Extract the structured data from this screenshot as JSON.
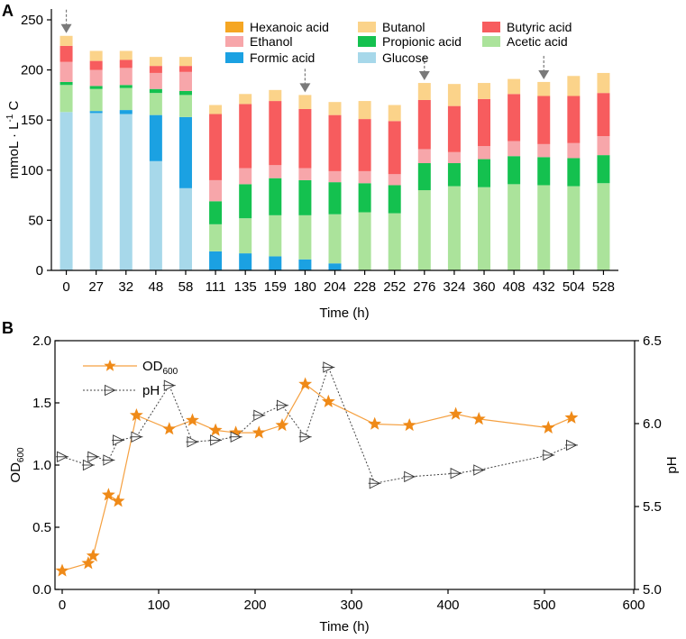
{
  "colors": {
    "hexanoic": "#f5a623",
    "butanol": "#fbd38a",
    "butyric": "#f75c5e",
    "ethanol": "#f7a6aa",
    "propionic": "#14c14f",
    "acetic": "#abe39b",
    "formic": "#1ba1e2",
    "glucose": "#a7d8ea",
    "od_line": "#f5a040",
    "od_marker": "#ef8a18",
    "ph_line": "#444444",
    "arrow": "#7a7a7a"
  },
  "chart_data": [
    {
      "panel": "A",
      "type": "bar",
      "stacked": true,
      "xlabel": "Time (h)",
      "ylabel": "mmoL · L",
      "ylabel_sup": "-1",
      "ylabel_suffix": " C",
      "ylim": [
        0,
        250
      ],
      "yticks": [
        0,
        50,
        100,
        150,
        200,
        250
      ],
      "categories": [
        "0",
        "27",
        "32",
        "48",
        "58",
        "111",
        "135",
        "159",
        "180",
        "204",
        "228",
        "252",
        "276",
        "324",
        "360",
        "408",
        "432",
        "504",
        "528"
      ],
      "arrow_markers": [
        "0",
        "180",
        "276",
        "432"
      ],
      "series": [
        {
          "name": "Glucose",
          "key": "glucose",
          "values": [
            158,
            157,
            156,
            109,
            82,
            0,
            0,
            0,
            0,
            0,
            0,
            0,
            0,
            0,
            0,
            0,
            0,
            0,
            0
          ]
        },
        {
          "name": "Formic acid",
          "key": "formic",
          "values": [
            0,
            2,
            4,
            46,
            71,
            19,
            17,
            14,
            11,
            7,
            0,
            0,
            0,
            0,
            0,
            0,
            0,
            0,
            0
          ]
        },
        {
          "name": "Acetic acid",
          "key": "acetic",
          "values": [
            27,
            22,
            22,
            22,
            22,
            27,
            35,
            41,
            44,
            49,
            58,
            57,
            80,
            84,
            83,
            86,
            85,
            84,
            87
          ]
        },
        {
          "name": "Propionic acid",
          "key": "propionic",
          "values": [
            3,
            3,
            3,
            4,
            4,
            23,
            34,
            37,
            35,
            32,
            29,
            28,
            27,
            23,
            28,
            28,
            28,
            28,
            28
          ]
        },
        {
          "name": "Ethanol",
          "key": "ethanol",
          "values": [
            20,
            16,
            17,
            16,
            19,
            21,
            16,
            13,
            12,
            11,
            12,
            11,
            14,
            11,
            13,
            15,
            13,
            15,
            19
          ]
        },
        {
          "name": "Butyric acid",
          "key": "butyric",
          "values": [
            16,
            9,
            8,
            7,
            6,
            66,
            64,
            64,
            59,
            56,
            52,
            53,
            49,
            46,
            47,
            47,
            48,
            47,
            43
          ]
        },
        {
          "name": "Butanol",
          "key": "butanol",
          "values": [
            10,
            10,
            9,
            9,
            9,
            9,
            10,
            11,
            14,
            13,
            18,
            16,
            17,
            22,
            16,
            15,
            14,
            20,
            20
          ]
        },
        {
          "name": "Hexanoic acid",
          "key": "hexanoic",
          "values": [
            0,
            0,
            0,
            0,
            0,
            0,
            0,
            0,
            0,
            0,
            0,
            0,
            0,
            0,
            0,
            0,
            0,
            0,
            0
          ]
        }
      ],
      "legend": [
        {
          "label": "Hexanoic acid",
          "key": "hexanoic"
        },
        {
          "label": "Butanol",
          "key": "butanol"
        },
        {
          "label": "Butyric acid",
          "key": "butyric"
        },
        {
          "label": "Ethanol",
          "key": "ethanol"
        },
        {
          "label": "Propionic acid",
          "key": "propionic"
        },
        {
          "label": "Acetic acid",
          "key": "acetic"
        },
        {
          "label": "Formic acid",
          "key": "formic"
        },
        {
          "label": "Glucose",
          "key": "glucose"
        }
      ]
    },
    {
      "panel": "B",
      "type": "line",
      "xlabel": "Time (h)",
      "ylabel_left": "OD",
      "ylabel_left_sub": "600",
      "ylabel_right": "pH",
      "xlim": [
        0,
        600
      ],
      "xticks": [
        0,
        100,
        200,
        300,
        400,
        500,
        600
      ],
      "ylim_left": [
        0.0,
        2.0
      ],
      "yticks_left": [
        "0.0",
        "0.5",
        "1.0",
        "1.5",
        "2.0"
      ],
      "ylim_right": [
        5.0,
        6.5
      ],
      "yticks_right": [
        "5.0",
        "5.5",
        "6.0",
        "6.5"
      ],
      "series": [
        {
          "name": "OD600",
          "legend_label": "OD",
          "legend_sub": "600",
          "axis": "left",
          "marker": "star",
          "x": [
            0,
            27,
            32,
            48,
            58,
            77,
            111,
            135,
            159,
            180,
            204,
            228,
            252,
            276,
            324,
            360,
            408,
            432,
            504,
            528
          ],
          "y": [
            0.15,
            0.21,
            0.27,
            0.76,
            0.71,
            1.4,
            1.29,
            1.36,
            1.28,
            1.26,
            1.26,
            1.32,
            1.65,
            1.51,
            1.33,
            1.32,
            1.41,
            1.37,
            1.3,
            1.38
          ]
        },
        {
          "name": "pH",
          "legend_label": "pH",
          "axis": "right",
          "marker": "triangle-right",
          "x": [
            0,
            27,
            32,
            48,
            58,
            77,
            111,
            135,
            159,
            180,
            204,
            228,
            252,
            276,
            324,
            360,
            408,
            432,
            504,
            528
          ],
          "y": [
            5.8,
            5.75,
            5.8,
            5.78,
            5.9,
            5.92,
            6.23,
            5.89,
            5.9,
            5.92,
            6.05,
            6.11,
            5.92,
            6.34,
            5.64,
            5.68,
            5.7,
            5.72,
            5.81,
            5.87
          ]
        }
      ]
    }
  ],
  "panel_labels": {
    "a": "A",
    "b": "B"
  }
}
